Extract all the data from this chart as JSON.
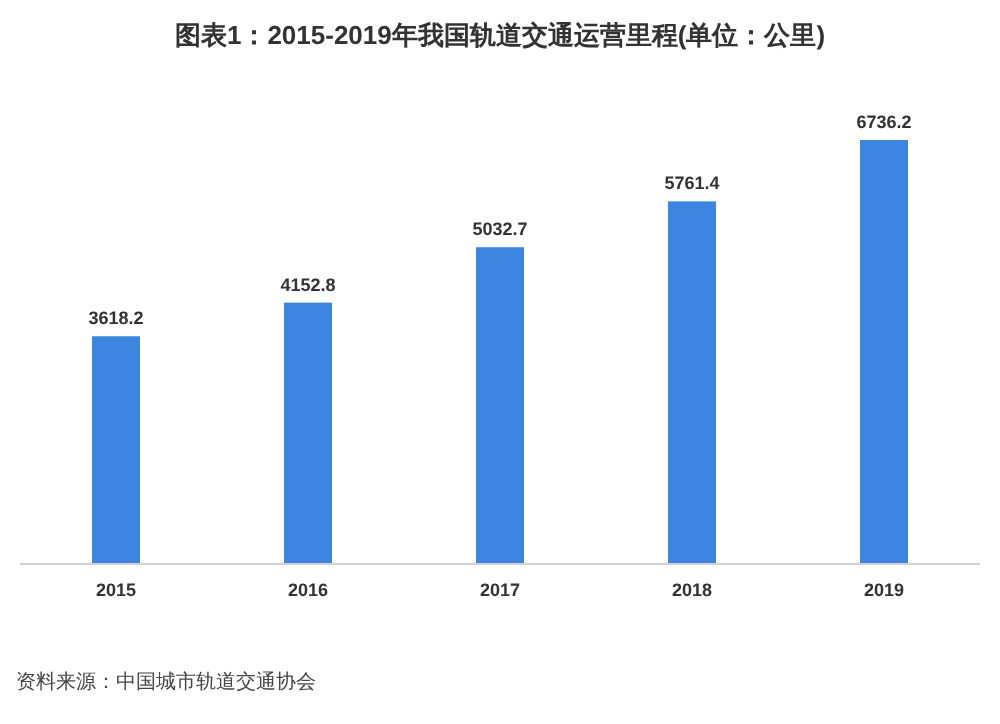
{
  "chart_data": {
    "type": "bar",
    "title": "图表1：2015-2019年我国轨道交通运营里程(单位：公里)",
    "categories": [
      "2015",
      "2016",
      "2017",
      "2018",
      "2019"
    ],
    "values": [
      3618.2,
      4152.8,
      5032.7,
      5761.4,
      6736.2
    ],
    "color": "#3d85e0",
    "data_labels": true,
    "annotations": [
      "资料来源：中国城市轨道交通协会"
    ]
  }
}
